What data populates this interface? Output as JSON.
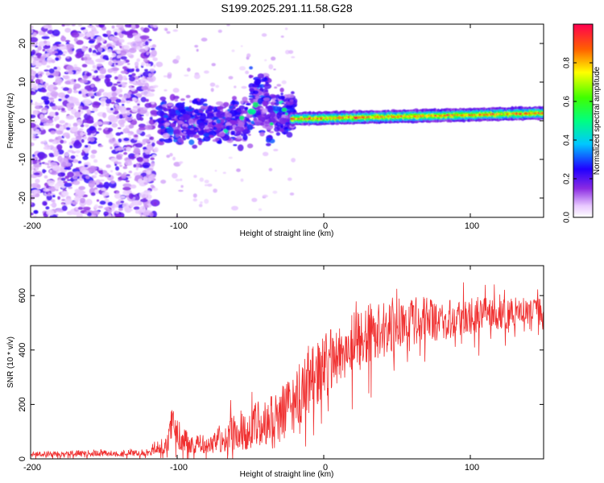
{
  "title": "S199.2025.291.11.58.G28",
  "chart_data": [
    {
      "type": "heatmap",
      "xlabel": "Height of straight line (km)",
      "ylabel": "Frequency (Hz)",
      "xlim": [
        -200,
        150
      ],
      "ylim": [
        -25,
        25
      ],
      "xticks": [
        -200,
        -100,
        0,
        100
      ],
      "xtick_labels": [
        "-200",
        "-100",
        "0",
        "100"
      ],
      "yticks": [
        -20,
        -10,
        0,
        10,
        20
      ],
      "ytick_labels": [
        "-20",
        "-10",
        "0",
        "10",
        "20"
      ],
      "colorbar": {
        "label": "Normalized spectral amplitude",
        "range": [
          0,
          1
        ],
        "ticks": [
          0,
          0.2,
          0.4,
          0.6,
          0.8
        ],
        "tick_labels": [
          "0.0",
          "0.2",
          "0.4",
          "0.6",
          "0.8"
        ],
        "colormap": "rainbow (white-violet-blue-cyan-green-yellow-red)"
      },
      "regions": [
        {
          "x_range": [
            -200,
            -115
          ],
          "freq_range": [
            -25,
            25
          ],
          "amplitude": "0.05-0.25, scattered noise"
        },
        {
          "x_range": [
            -115,
            -20
          ],
          "freq_range": [
            -7,
            12
          ],
          "amplitude": "0.1-0.5, clustered blobs"
        },
        {
          "x_range": [
            -20,
            150
          ],
          "freq_center_start": 0.5,
          "freq_center_end": 2,
          "bandwidth_hz": 2.5,
          "amplitude": "0.6-1.0, narrow carrier line"
        }
      ]
    },
    {
      "type": "line",
      "xlabel": "Height of straight line (km)",
      "ylabel": "SNR (10 * v/v)",
      "xlim": [
        -200,
        150
      ],
      "ylim": [
        0,
        710
      ],
      "xticks": [
        -200,
        -100,
        0,
        100
      ],
      "xtick_labels": [
        "-200",
        "-100",
        "0",
        "100"
      ],
      "yticks": [
        0,
        200,
        400,
        600
      ],
      "ytick_labels": [
        "0",
        "200",
        "400",
        "600"
      ],
      "series": [
        {
          "name": "SNR",
          "color": "#f03030",
          "envelope_x": [
            -200,
            -180,
            -160,
            -140,
            -120,
            -110,
            -100,
            -95,
            -90,
            -80,
            -70,
            -60,
            -50,
            -40,
            -30,
            -20,
            -10,
            0,
            10,
            20,
            30,
            40,
            50,
            60,
            70,
            80,
            90,
            100,
            110,
            120,
            130,
            140,
            150
          ],
          "envelope_mean": [
            18,
            18,
            20,
            20,
            22,
            40,
            90,
            70,
            55,
            55,
            75,
            105,
            120,
            125,
            150,
            210,
            280,
            335,
            385,
            430,
            460,
            480,
            495,
            505,
            510,
            515,
            520,
            525,
            530,
            535,
            538,
            540,
            540
          ],
          "envelope_spread": [
            10,
            10,
            12,
            12,
            14,
            25,
            60,
            45,
            35,
            35,
            55,
            80,
            90,
            95,
            105,
            115,
            120,
            120,
            115,
            110,
            105,
            100,
            95,
            90,
            85,
            80,
            75,
            70,
            65,
            60,
            55,
            50,
            50
          ]
        }
      ]
    }
  ]
}
